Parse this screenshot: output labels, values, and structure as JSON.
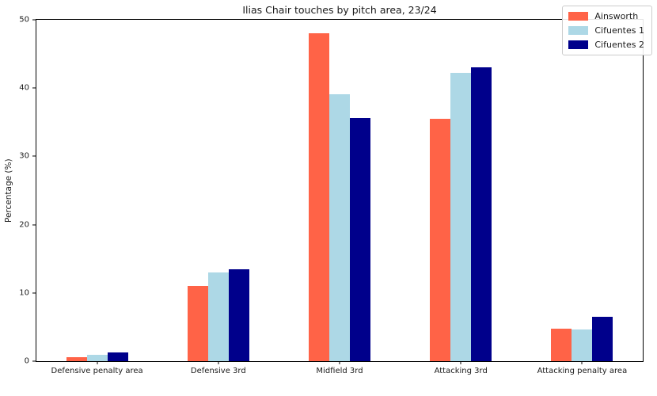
{
  "chart_data": {
    "type": "bar",
    "title": "Ilias Chair touches by pitch area, 23/24",
    "xlabel": "",
    "ylabel": "Percentage (%)",
    "ylim": [
      0,
      50
    ],
    "yticks": [
      0,
      10,
      20,
      30,
      40,
      50
    ],
    "grid": false,
    "legend_position": "upper right",
    "background_color": "#ffffff",
    "categories": [
      "Defensive penalty area",
      "Defensive 3rd",
      "Midfield 3rd",
      "Attacking 3rd",
      "Attacking penalty area"
    ],
    "series": [
      {
        "name": "Ainsworth",
        "color": "#FF6347",
        "values": [
          0.6,
          11.0,
          48.0,
          35.5,
          4.8
        ]
      },
      {
        "name": "Cifuentes 1",
        "color": "#ADD8E6",
        "values": [
          0.9,
          13.0,
          39.1,
          42.2,
          4.7
        ]
      },
      {
        "name": "Cifuentes 2",
        "color": "#00008B",
        "values": [
          1.3,
          13.5,
          35.6,
          43.0,
          6.5
        ]
      }
    ]
  }
}
